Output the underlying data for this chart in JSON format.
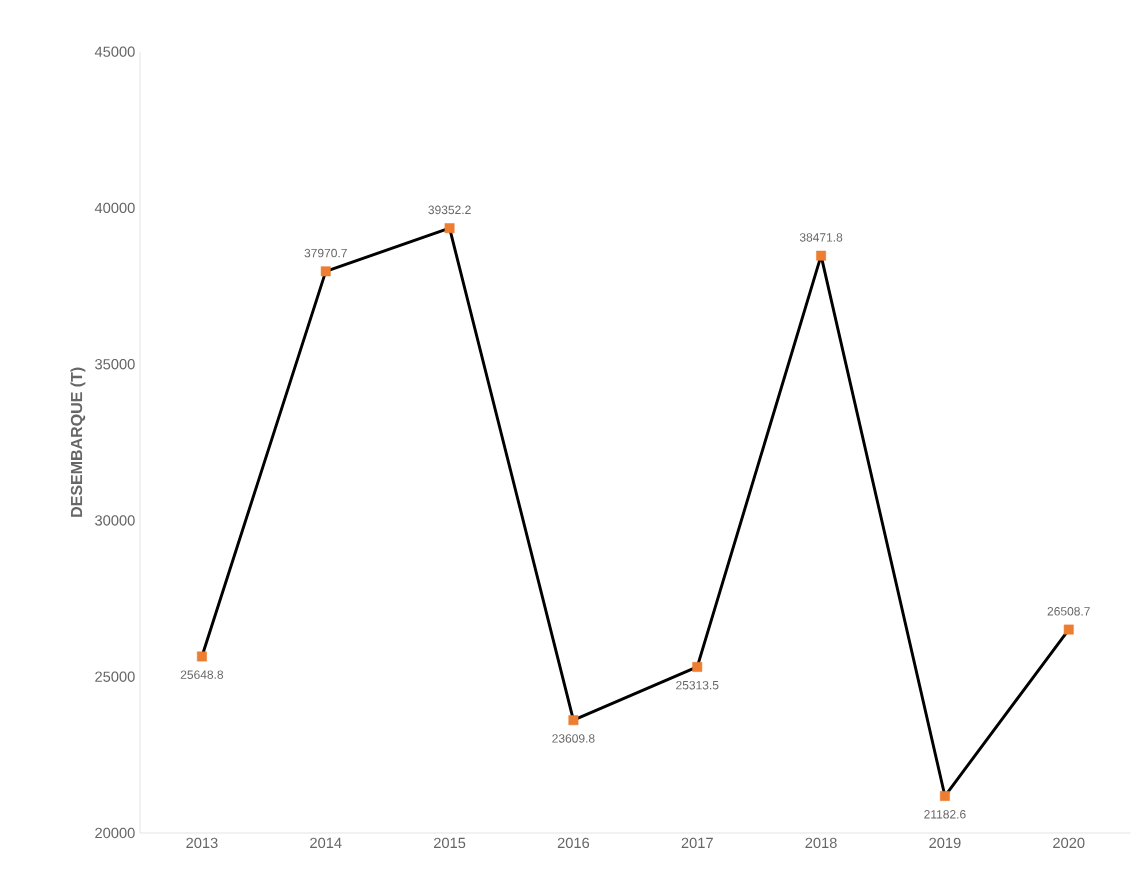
{
  "chart_data": {
    "type": "line",
    "ylabel": "DESEMBARQUE (T)",
    "categories": [
      "2013",
      "2014",
      "2015",
      "2016",
      "2017",
      "2018",
      "2019",
      "2020"
    ],
    "series": [
      {
        "color": "#000000",
        "colors": [
          "#ed7d31",
          "#ed7d31",
          "#ed7d31",
          "#ed7d31",
          "#ed7d31",
          "#ed7d31",
          "#ed7d31",
          "#ed7d31"
        ],
        "values": [
          25648.8,
          37970.7,
          39352.2,
          23609.8,
          25313.5,
          38471.8,
          21182.6,
          26508.7
        ]
      }
    ],
    "ylim": [
      20000,
      45000
    ],
    "yticks": [
      20000,
      25000,
      30000,
      35000,
      40000,
      45000
    ],
    "grid": false,
    "marker": "square",
    "line_style": "solid",
    "data_labels": true
  }
}
